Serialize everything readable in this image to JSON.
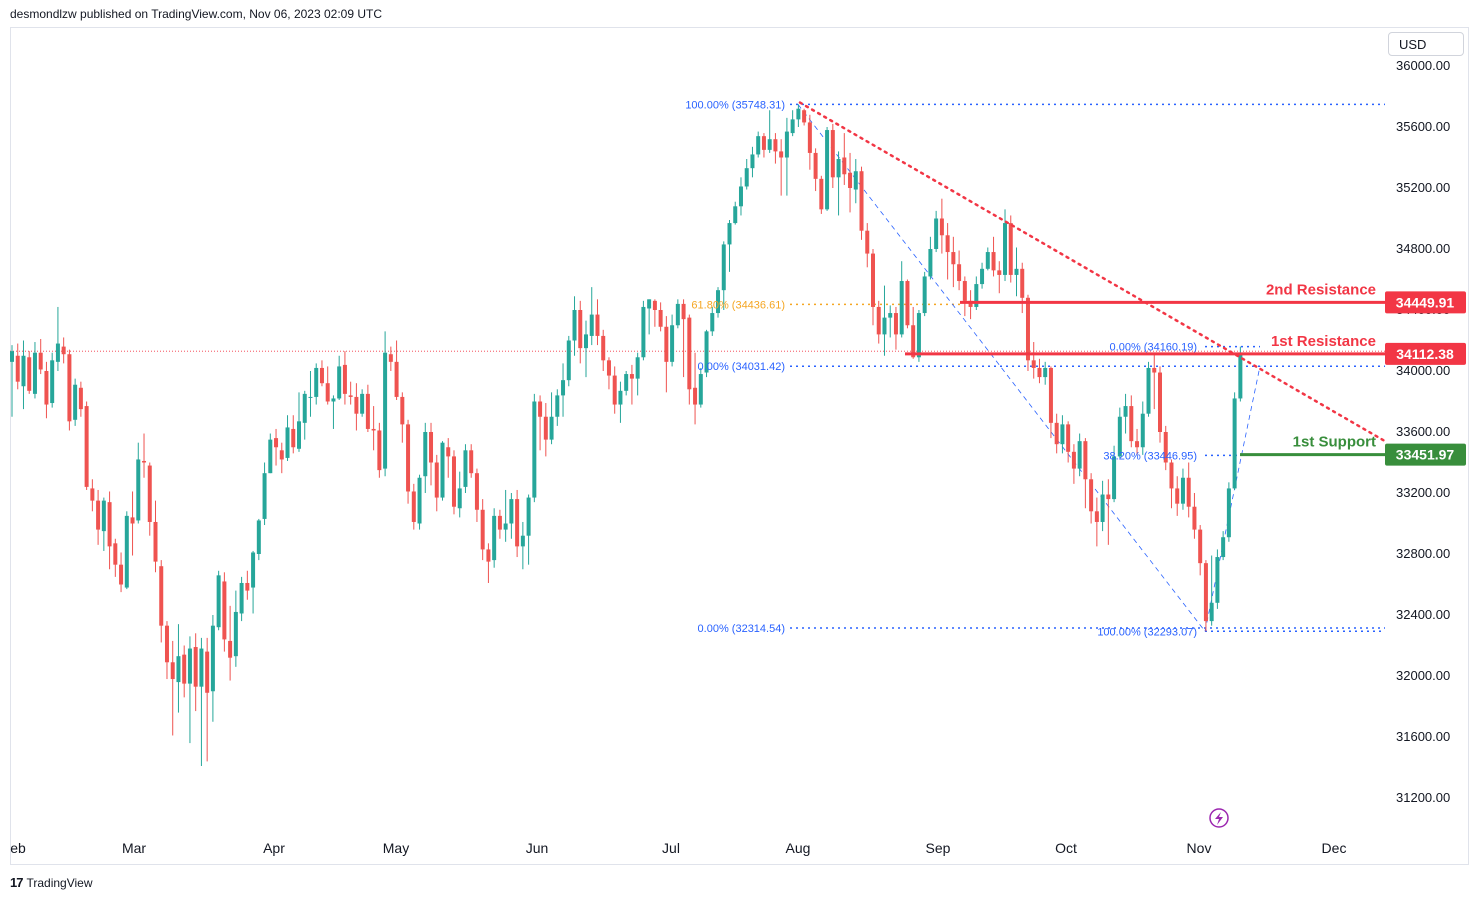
{
  "header": {
    "published_text": "desmondlzw published on TradingView.com, Nov 06, 2023 02:09 UTC"
  },
  "footer": {
    "brand": "TradingView",
    "logo_mark": "17"
  },
  "currency": "USD",
  "colors": {
    "up": "#26a69a",
    "down": "#ef5350",
    "resistance": "#f23645",
    "support": "#388e3c",
    "fib_blue": "#2962ff",
    "fib_orange": "#f5a623",
    "trendline": "#f23645",
    "grid_text": "#131722",
    "wick_up": "#26a69a",
    "wick_down": "#ef5350"
  },
  "chart_data": {
    "type": "candlestick",
    "ylim": [
      30900,
      36150
    ],
    "y_ticks": [
      31200,
      31600,
      32000,
      32400,
      32800,
      33200,
      33600,
      34000,
      34400,
      34800,
      35200,
      35600,
      36000
    ],
    "y_tick_labels": [
      "31200.00",
      "31600.00",
      "32000.00",
      "32400.00",
      "32800.00",
      "33200.00",
      "33600.00",
      "34000.00",
      "34400.00",
      "34800.00",
      "35200.00",
      "35600.00",
      "36000.00"
    ],
    "x_labels": [
      "eb",
      "Mar",
      "Apr",
      "May",
      "Jun",
      "Jul",
      "Aug",
      "Sep",
      "Oct",
      "Nov",
      "Dec"
    ],
    "x_label_dates": [
      "2023-02-01",
      "2023-03-01",
      "2023-04-01",
      "2023-05-01",
      "2023-06-01",
      "2023-07-01",
      "2023-08-01",
      "2023-09-01",
      "2023-10-01",
      "2023-11-01",
      "2023-12-01"
    ],
    "price_levels": [
      {
        "name": "2nd Resistance",
        "value": 34449.91,
        "label": "34449.91",
        "kind": "resistance"
      },
      {
        "name": "1st Resistance",
        "value": 34112.38,
        "label": "34112.38",
        "kind": "resistance"
      },
      {
        "name": "1st Support",
        "value": 33451.97,
        "label": "33451.97",
        "kind": "support"
      }
    ],
    "fib_labels": [
      {
        "text": "100.00% (35748.31)",
        "value": 35748.31
      },
      {
        "text": "61.80% (34436.61)",
        "value": 34436.61
      },
      {
        "text": "0.00% (34031.42)",
        "value": 34031.42
      },
      {
        "text": "0.00% (32314.54)",
        "value": 32314.54
      },
      {
        "text": "0.00% (34160.19)",
        "value": 34160.19
      },
      {
        "text": "38.20% (33446.95)",
        "value": 33446.95
      },
      {
        "text": "100.00% (32293.07)",
        "value": 32293.07
      }
    ],
    "current_price_line": 34130,
    "candles": [
      [
        34060,
        34130,
        33700,
        34170
      ],
      [
        34100,
        33930,
        33880,
        34180
      ],
      [
        33900,
        34100,
        33750,
        34200
      ],
      [
        34090,
        33870,
        33850,
        34130
      ],
      [
        33850,
        34120,
        33820,
        34190
      ],
      [
        34120,
        34010,
        33980,
        34210
      ],
      [
        34000,
        33780,
        33690,
        34060
      ],
      [
        33790,
        34070,
        33760,
        34120
      ],
      [
        34060,
        34180,
        34000,
        34420
      ],
      [
        34160,
        34110,
        34050,
        34220
      ],
      [
        34110,
        33670,
        33610,
        34140
      ],
      [
        33680,
        33910,
        33640,
        33950
      ],
      [
        33890,
        33750,
        33700,
        33930
      ],
      [
        33770,
        33240,
        33220,
        33800
      ],
      [
        33230,
        33150,
        33080,
        33290
      ],
      [
        33150,
        32960,
        32860,
        33220
      ],
      [
        32950,
        33150,
        32820,
        33170
      ],
      [
        33140,
        32850,
        32700,
        33210
      ],
      [
        32870,
        32730,
        32650,
        32900
      ],
      [
        32730,
        32600,
        32550,
        32810
      ],
      [
        32580,
        33050,
        32570,
        33080
      ],
      [
        33040,
        33000,
        32790,
        33210
      ],
      [
        33020,
        33420,
        33000,
        33530
      ],
      [
        33410,
        33400,
        33300,
        33590
      ],
      [
        33380,
        33010,
        32920,
        33400
      ],
      [
        33010,
        32750,
        32680,
        33150
      ],
      [
        32720,
        32330,
        32220,
        32760
      ],
      [
        32330,
        32090,
        31980,
        32360
      ],
      [
        32090,
        31980,
        31610,
        32230
      ],
      [
        31960,
        32130,
        31760,
        32340
      ],
      [
        32140,
        31950,
        31860,
        32200
      ],
      [
        31950,
        32180,
        31560,
        32260
      ],
      [
        32190,
        31930,
        31770,
        32280
      ],
      [
        31930,
        32180,
        31410,
        32250
      ],
      [
        32160,
        31890,
        31440,
        32250
      ],
      [
        31900,
        32330,
        31700,
        32400
      ],
      [
        32320,
        32660,
        32300,
        32690
      ],
      [
        32620,
        32240,
        32160,
        32680
      ],
      [
        32230,
        32120,
        31970,
        32460
      ],
      [
        32130,
        32420,
        32060,
        32560
      ],
      [
        32410,
        32610,
        32360,
        32650
      ],
      [
        32610,
        32560,
        32500,
        32690
      ],
      [
        32580,
        32810,
        32410,
        32820
      ],
      [
        32800,
        33020,
        32760,
        33030
      ],
      [
        33030,
        33330,
        32990,
        33400
      ],
      [
        33330,
        33550,
        33330,
        33590
      ],
      [
        33560,
        33500,
        33380,
        33620
      ],
      [
        33480,
        33420,
        33330,
        33530
      ],
      [
        33430,
        33630,
        33410,
        33710
      ],
      [
        33620,
        33500,
        33460,
        33710
      ],
      [
        33490,
        33670,
        33470,
        33860
      ],
      [
        33660,
        33850,
        33550,
        33870
      ],
      [
        33830,
        33830,
        33700,
        34000
      ],
      [
        33830,
        34020,
        33780,
        34050
      ],
      [
        34020,
        33920,
        33900,
        34070
      ],
      [
        33920,
        33800,
        33780,
        34030
      ],
      [
        33800,
        33820,
        33620,
        33840
      ],
      [
        33820,
        34030,
        33810,
        34100
      ],
      [
        34040,
        33850,
        33780,
        34130
      ],
      [
        33840,
        33830,
        33780,
        33930
      ],
      [
        33830,
        33720,
        33610,
        33920
      ],
      [
        33720,
        33850,
        33700,
        33880
      ],
      [
        33850,
        33620,
        33600,
        33910
      ],
      [
        33620,
        33610,
        33480,
        33770
      ],
      [
        33610,
        33350,
        33300,
        33660
      ],
      [
        33360,
        34120,
        33310,
        34260
      ],
      [
        34110,
        34060,
        34000,
        34160
      ],
      [
        34060,
        33830,
        33810,
        34200
      ],
      [
        33830,
        33650,
        33530,
        33860
      ],
      [
        33650,
        33210,
        33130,
        33680
      ],
      [
        33210,
        33010,
        32960,
        33260
      ],
      [
        33000,
        33300,
        32960,
        33320
      ],
      [
        33310,
        33600,
        33200,
        33660
      ],
      [
        33600,
        33400,
        33250,
        33660
      ],
      [
        33400,
        33170,
        33080,
        33450
      ],
      [
        33170,
        33530,
        33150,
        33540
      ],
      [
        33500,
        33440,
        33300,
        33560
      ],
      [
        33440,
        33110,
        33060,
        33480
      ],
      [
        33100,
        33230,
        33040,
        33340
      ],
      [
        33240,
        33480,
        33200,
        33520
      ],
      [
        33480,
        33330,
        33300,
        33520
      ],
      [
        33330,
        33090,
        33010,
        33360
      ],
      [
        33090,
        32830,
        32760,
        33160
      ],
      [
        32830,
        32750,
        32610,
        32870
      ],
      [
        32760,
        33050,
        32710,
        33100
      ],
      [
        33050,
        32960,
        32900,
        33090
      ],
      [
        32960,
        33000,
        32880,
        33220
      ],
      [
        33000,
        33160,
        32900,
        33200
      ],
      [
        33160,
        32850,
        32780,
        33220
      ],
      [
        32850,
        32920,
        32700,
        33010
      ],
      [
        32920,
        33170,
        32730,
        33190
      ],
      [
        33170,
        33800,
        33140,
        33850
      ],
      [
        33800,
        33700,
        33480,
        33840
      ],
      [
        33700,
        33550,
        33440,
        33790
      ],
      [
        33550,
        33700,
        33520,
        33860
      ],
      [
        33700,
        33840,
        33640,
        33880
      ],
      [
        33840,
        33940,
        33700,
        34050
      ],
      [
        33940,
        34200,
        33900,
        34230
      ],
      [
        34200,
        34400,
        34100,
        34490
      ],
      [
        34400,
        34150,
        34050,
        34460
      ],
      [
        34150,
        34240,
        33960,
        34330
      ],
      [
        34230,
        34370,
        34170,
        34550
      ],
      [
        34370,
        34230,
        34170,
        34470
      ],
      [
        34230,
        34070,
        34000,
        34270
      ],
      [
        34070,
        33970,
        33880,
        34090
      ],
      [
        33970,
        33780,
        33720,
        34030
      ],
      [
        33780,
        33870,
        33660,
        33930
      ],
      [
        33870,
        33980,
        33840,
        34000
      ],
      [
        33980,
        33950,
        33780,
        34040
      ],
      [
        33950,
        34090,
        33840,
        34120
      ],
      [
        34090,
        34420,
        34070,
        34460
      ],
      [
        34410,
        34470,
        34240,
        34470
      ],
      [
        34460,
        34400,
        34290,
        34470
      ],
      [
        34400,
        34290,
        34260,
        34450
      ],
      [
        34290,
        34060,
        33860,
        34360
      ],
      [
        34060,
        34300,
        34030,
        34370
      ],
      [
        34300,
        34440,
        34280,
        34470
      ],
      [
        34440,
        34340,
        33960,
        34470
      ],
      [
        34350,
        33880,
        33780,
        34370
      ],
      [
        33890,
        33780,
        33650,
        34120
      ],
      [
        33780,
        33980,
        33760,
        34020
      ],
      [
        33990,
        34260,
        33960,
        34270
      ],
      [
        34260,
        34380,
        34230,
        34420
      ],
      [
        34380,
        34530,
        34350,
        34550
      ],
      [
        34530,
        34830,
        34400,
        34850
      ],
      [
        34830,
        34970,
        34650,
        34990
      ],
      [
        34970,
        35080,
        34960,
        35110
      ],
      [
        35080,
        35210,
        35020,
        35270
      ],
      [
        35210,
        35330,
        35190,
        35390
      ],
      [
        35330,
        35420,
        35270,
        35470
      ],
      [
        35420,
        35540,
        35400,
        35570
      ],
      [
        35540,
        35450,
        35400,
        35560
      ],
      [
        35450,
        35520,
        35430,
        35710
      ],
      [
        35520,
        35440,
        35360,
        35560
      ],
      [
        35440,
        35400,
        35150,
        35520
      ],
      [
        35400,
        35570,
        35150,
        35660
      ],
      [
        35560,
        35650,
        35540,
        35710
      ],
      [
        35650,
        35720,
        35600,
        35748
      ],
      [
        35710,
        35630,
        35610,
        35720
      ],
      [
        35630,
        35430,
        35320,
        35680
      ],
      [
        35430,
        35260,
        35180,
        35460
      ],
      [
        35260,
        35060,
        35030,
        35280
      ],
      [
        35060,
        35580,
        35050,
        35600
      ],
      [
        35580,
        35270,
        35200,
        35620
      ],
      [
        35270,
        35390,
        35020,
        35440
      ],
      [
        35400,
        35290,
        35220,
        35560
      ],
      [
        35300,
        35200,
        35040,
        35430
      ],
      [
        35190,
        35310,
        35100,
        35390
      ],
      [
        35310,
        34920,
        34860,
        35340
      ],
      [
        34920,
        34770,
        34680,
        34970
      ],
      [
        34770,
        34420,
        34300,
        34800
      ],
      [
        34420,
        34240,
        34180,
        34460
      ],
      [
        34240,
        34350,
        34100,
        34560
      ],
      [
        34350,
        34380,
        34220,
        34430
      ],
      [
        34380,
        34240,
        34140,
        34420
      ],
      [
        34240,
        34590,
        34220,
        34720
      ],
      [
        34590,
        34300,
        34280,
        34600
      ],
      [
        34300,
        34090,
        34080,
        34420
      ],
      [
        34090,
        34380,
        34060,
        34400
      ],
      [
        34380,
        34620,
        34360,
        34650
      ],
      [
        34620,
        34800,
        34600,
        34880
      ],
      [
        34800,
        35000,
        34780,
        35050
      ],
      [
        35000,
        34890,
        34770,
        35130
      ],
      [
        34890,
        34780,
        34600,
        34970
      ],
      [
        34780,
        34700,
        34550,
        34880
      ],
      [
        34700,
        34590,
        34530,
        34790
      ],
      [
        34590,
        34460,
        34360,
        34620
      ],
      [
        34460,
        34420,
        34340,
        34530
      ],
      [
        34420,
        34570,
        34400,
        34620
      ],
      [
        34570,
        34670,
        34540,
        34710
      ],
      [
        34670,
        34780,
        34660,
        34810
      ],
      [
        34780,
        34660,
        34620,
        34880
      ],
      [
        34660,
        34630,
        34510,
        34720
      ],
      [
        34630,
        34970,
        34590,
        35060
      ],
      [
        34970,
        34630,
        34580,
        35020
      ],
      [
        34630,
        34670,
        34490,
        34810
      ],
      [
        34670,
        34480,
        34380,
        34710
      ],
      [
        34480,
        34070,
        34000,
        34500
      ],
      [
        34070,
        34020,
        33950,
        34190
      ],
      [
        34020,
        33960,
        33920,
        34080
      ],
      [
        33960,
        34020,
        33910,
        34060
      ],
      [
        34020,
        33660,
        33560,
        34030
      ],
      [
        33660,
        33520,
        33460,
        33720
      ],
      [
        33520,
        33650,
        33460,
        33710
      ],
      [
        33650,
        33470,
        33400,
        33670
      ],
      [
        33470,
        33360,
        33260,
        33520
      ],
      [
        33360,
        33540,
        33310,
        33590
      ],
      [
        33540,
        33290,
        33100,
        33560
      ],
      [
        33290,
        33080,
        33000,
        33330
      ],
      [
        33080,
        33010,
        32850,
        33170
      ],
      [
        33010,
        33190,
        32950,
        33280
      ],
      [
        33190,
        33160,
        32860,
        33290
      ],
      [
        33160,
        33440,
        33140,
        33510
      ],
      [
        33440,
        33700,
        33430,
        33760
      ],
      [
        33700,
        33770,
        33590,
        33850
      ],
      [
        33770,
        33540,
        33500,
        33840
      ],
      [
        33540,
        33500,
        33450,
        33620
      ],
      [
        33500,
        33720,
        33450,
        33800
      ],
      [
        33720,
        34020,
        33700,
        34060
      ],
      [
        34020,
        33990,
        33750,
        34110
      ],
      [
        33990,
        33600,
        33530,
        34030
      ],
      [
        33600,
        33400,
        33350,
        33640
      ],
      [
        33400,
        33230,
        33100,
        33420
      ],
      [
        33230,
        33130,
        33050,
        33310
      ],
      [
        33130,
        33300,
        33090,
        33360
      ],
      [
        33300,
        33110,
        33040,
        33400
      ],
      [
        33110,
        32960,
        32900,
        33200
      ],
      [
        32960,
        32740,
        32660,
        32990
      ],
      [
        32740,
        32360,
        32293,
        32760
      ],
      [
        32360,
        32480,
        32330,
        32790
      ],
      [
        32480,
        32780,
        32440,
        32830
      ],
      [
        32780,
        32910,
        32760,
        32950
      ],
      [
        32910,
        33230,
        32880,
        33270
      ],
      [
        33230,
        33820,
        33220,
        33860
      ],
      [
        33820,
        34120,
        33800,
        34160
      ]
    ]
  }
}
